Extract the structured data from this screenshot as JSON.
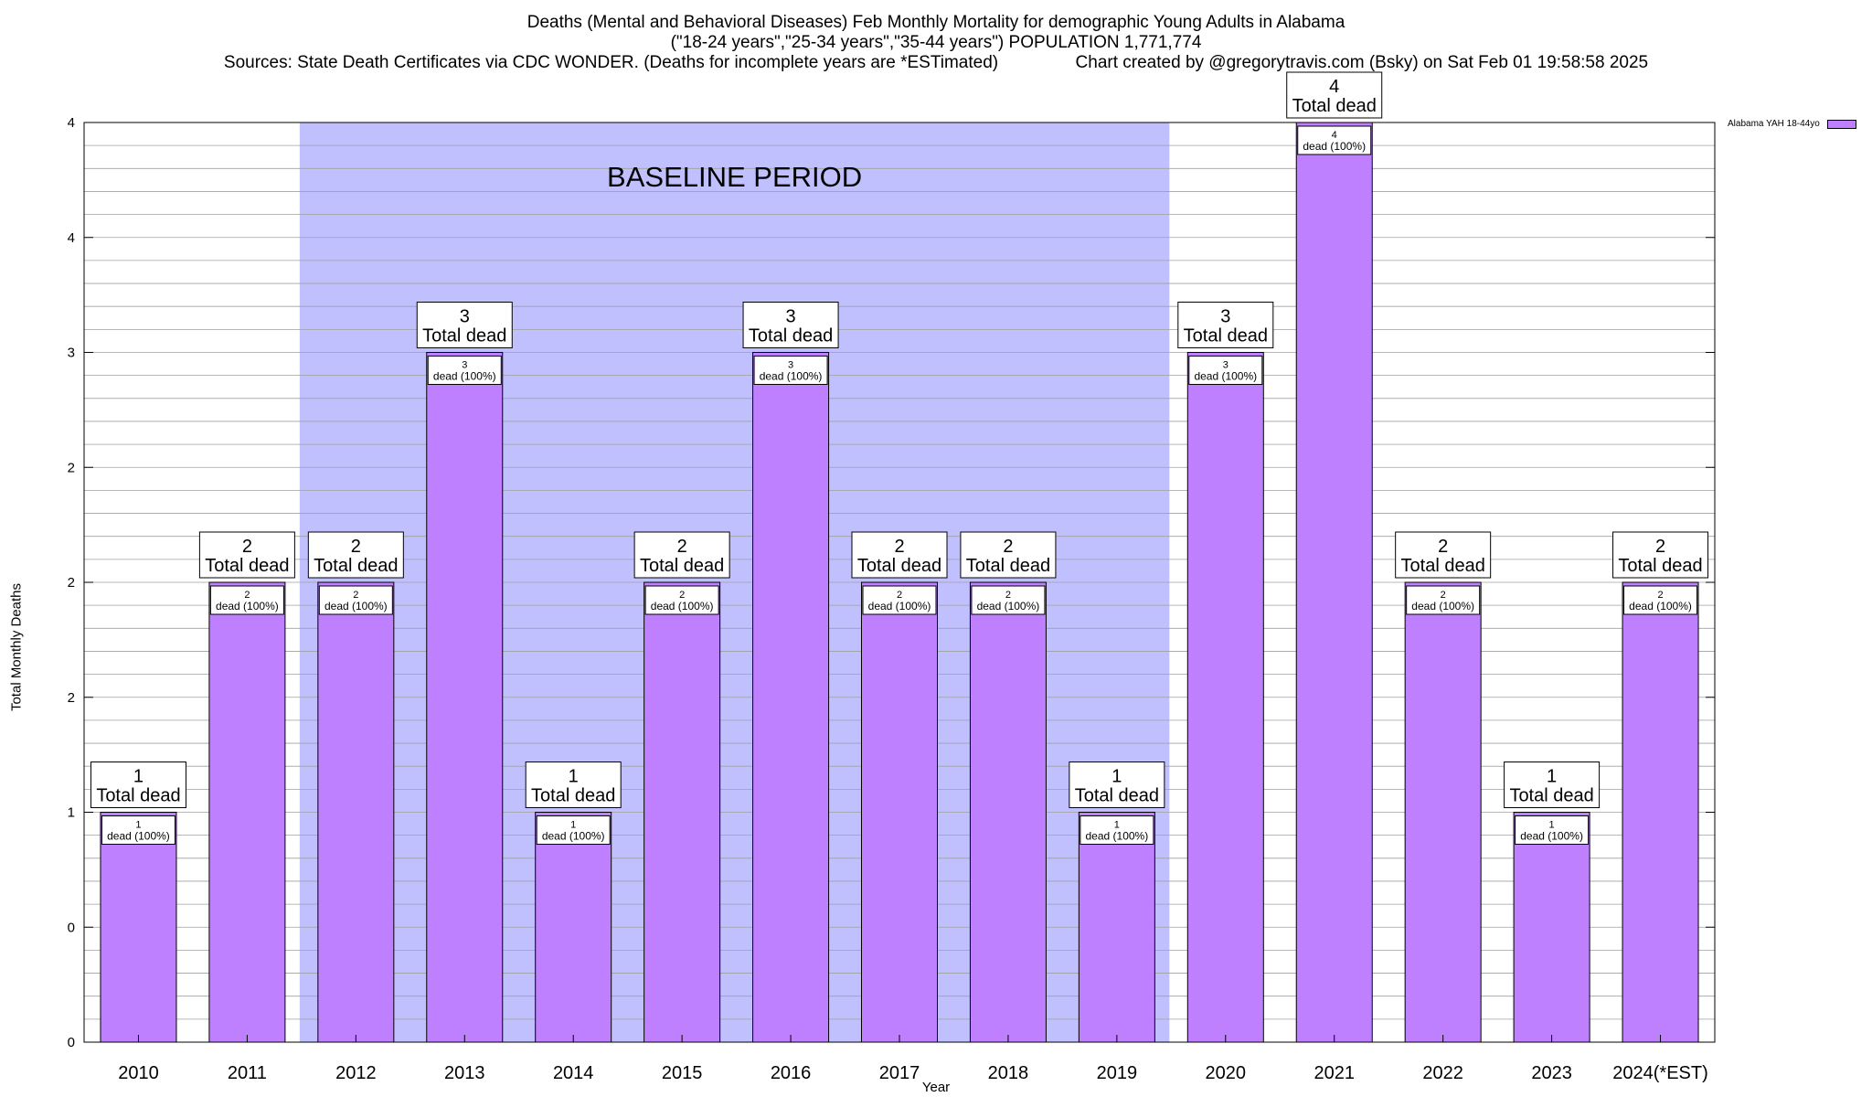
{
  "chart_data": {
    "type": "bar",
    "title": [
      "Deaths (Mental and Behavioral Diseases) Feb Monthly Mortality for demographic Young Adults in Alabama",
      "(\"18-24 years\",\"25-34 years\",\"35-44 years\") POPULATION 1,771,774",
      "Sources: State Death Certificates via CDC WONDER. (Deaths for incomplete years are *ESTimated)                Chart created by @gregorytravis.com (Bsky) on Sat Feb 01 19:58:58 2025"
    ],
    "xlabel": "Year",
    "ylabel": "Total Monthly Deaths",
    "ylim": [
      0,
      4
    ],
    "y_ticks": [
      {
        "value": 0,
        "label": "0"
      },
      {
        "value": 0.5,
        "label": "0"
      },
      {
        "value": 1,
        "label": "1"
      },
      {
        "value": 1.5,
        "label": "2"
      },
      {
        "value": 2,
        "label": "2"
      },
      {
        "value": 2.5,
        "label": "2"
      },
      {
        "value": 3,
        "label": "3"
      },
      {
        "value": 3.5,
        "label": "4"
      },
      {
        "value": 4,
        "label": "4"
      }
    ],
    "categories": [
      "2010",
      "2011",
      "2012",
      "2013",
      "2014",
      "2015",
      "2016",
      "2017",
      "2018",
      "2019",
      "2020",
      "2021",
      "2022",
      "2023",
      "2024(*EST)"
    ],
    "series": [
      {
        "name": "Alabama YAH 18-44yo",
        "values": [
          1,
          2,
          2,
          3,
          1,
          2,
          3,
          2,
          2,
          1,
          3,
          4,
          2,
          1,
          2
        ]
      }
    ],
    "bar_labels": {
      "total_suffix": "Total dead",
      "inner_suffix": "dead (100%)"
    },
    "annotation": {
      "text": "BASELINE PERIOD",
      "from_category": "2012",
      "to_category": "2019"
    },
    "legend": {
      "placement": "top-right"
    },
    "grid": true,
    "colors": {
      "bar": "#bf80ff",
      "baseline_band": "#c0c0ff",
      "legend_swatch": "#bf80ff",
      "grid": "#a0a0a0"
    }
  }
}
